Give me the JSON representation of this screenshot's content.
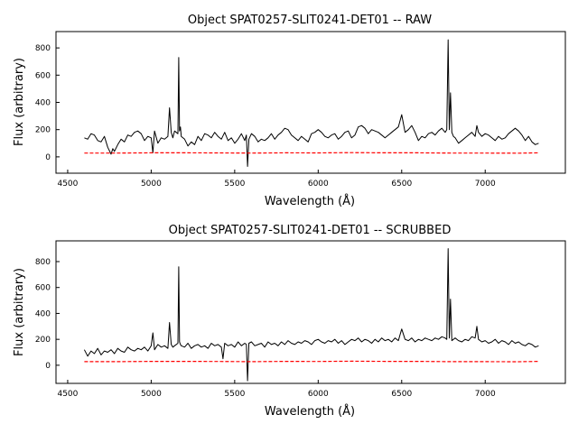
{
  "chart_data": [
    {
      "type": "line",
      "title": "Object SPAT0257-SLIT0241-DET01 -- RAW",
      "xlabel": "Wavelength (Å)",
      "ylabel": "Flux (arbitrary)",
      "xlim": [
        4430,
        7480
      ],
      "ylim": [
        -120,
        920
      ],
      "xticks": [
        4500,
        5000,
        5500,
        6000,
        6500,
        7000
      ],
      "yticks": [
        0,
        200,
        400,
        600,
        800
      ],
      "grid": false,
      "series": [
        {
          "style": "solid",
          "color": "#000000",
          "x": [
            4600,
            4620,
            4640,
            4660,
            4680,
            4700,
            4720,
            4740,
            4760,
            4770,
            4780,
            4800,
            4820,
            4840,
            4860,
            4880,
            4900,
            4920,
            4940,
            4960,
            4980,
            5000,
            5010,
            5020,
            5040,
            5060,
            5080,
            5100,
            5110,
            5120,
            5130,
            5140,
            5160,
            5165,
            5170,
            5175,
            5180,
            5200,
            5220,
            5240,
            5260,
            5280,
            5300,
            5320,
            5340,
            5360,
            5380,
            5400,
            5420,
            5440,
            5460,
            5480,
            5500,
            5520,
            5540,
            5560,
            5570,
            5577,
            5585,
            5600,
            5620,
            5640,
            5660,
            5680,
            5700,
            5720,
            5740,
            5760,
            5780,
            5800,
            5820,
            5840,
            5860,
            5880,
            5900,
            5920,
            5940,
            5960,
            5980,
            6000,
            6020,
            6040,
            6060,
            6080,
            6100,
            6120,
            6140,
            6160,
            6180,
            6200,
            6220,
            6240,
            6260,
            6280,
            6300,
            6320,
            6340,
            6360,
            6380,
            6400,
            6420,
            6440,
            6460,
            6480,
            6500,
            6520,
            6540,
            6560,
            6580,
            6600,
            6620,
            6640,
            6660,
            6680,
            6700,
            6720,
            6740,
            6760,
            6770,
            6778,
            6785,
            6792,
            6800,
            6810,
            6820,
            6840,
            6860,
            6880,
            6900,
            6920,
            6940,
            6950,
            6960,
            6980,
            7000,
            7020,
            7040,
            7060,
            7080,
            7100,
            7120,
            7140,
            7160,
            7180,
            7200,
            7220,
            7240,
            7260,
            7280,
            7300,
            7320
          ],
          "y": [
            140,
            130,
            170,
            160,
            120,
            110,
            150,
            70,
            20,
            60,
            40,
            90,
            130,
            110,
            160,
            150,
            180,
            190,
            170,
            120,
            150,
            140,
            30,
            190,
            100,
            140,
            130,
            150,
            360,
            180,
            140,
            190,
            170,
            730,
            190,
            220,
            150,
            130,
            80,
            110,
            90,
            150,
            120,
            170,
            160,
            140,
            180,
            150,
            130,
            180,
            120,
            140,
            100,
            130,
            170,
            120,
            160,
            -70,
            130,
            170,
            150,
            110,
            130,
            120,
            140,
            170,
            130,
            160,
            180,
            210,
            200,
            160,
            140,
            120,
            150,
            130,
            110,
            170,
            180,
            200,
            180,
            150,
            140,
            160,
            170,
            130,
            150,
            180,
            190,
            140,
            160,
            220,
            230,
            210,
            170,
            200,
            190,
            180,
            160,
            140,
            160,
            180,
            200,
            220,
            310,
            180,
            200,
            230,
            180,
            120,
            150,
            140,
            170,
            180,
            160,
            190,
            210,
            180,
            200,
            860,
            200,
            470,
            180,
            150,
            140,
            100,
            120,
            140,
            160,
            180,
            150,
            230,
            180,
            150,
            170,
            160,
            140,
            120,
            150,
            130,
            140,
            170,
            190,
            210,
            190,
            160,
            120,
            150,
            110,
            90,
            100
          ]
        },
        {
          "style": "dashed",
          "color": "#ff0000",
          "x": [
            4600,
            4800,
            5000,
            5200,
            5400,
            5600,
            5800,
            6000,
            6200,
            6400,
            6600,
            6800,
            7000,
            7200,
            7320
          ],
          "y": [
            28,
            28,
            30,
            30,
            29,
            28,
            30,
            29,
            31,
            30,
            30,
            28,
            28,
            27,
            30
          ]
        }
      ]
    },
    {
      "type": "line",
      "title": "Object SPAT0257-SLIT0241-DET01 -- SCRUBBED",
      "xlabel": "Wavelength (Å)",
      "ylabel": "Flux (arbitrary)",
      "xlim": [
        4430,
        7480
      ],
      "ylim": [
        -140,
        960
      ],
      "xticks": [
        4500,
        5000,
        5500,
        6000,
        6500,
        7000
      ],
      "yticks": [
        0,
        200,
        400,
        600,
        800
      ],
      "grid": false,
      "series": [
        {
          "style": "solid",
          "color": "#000000",
          "x": [
            4600,
            4620,
            4640,
            4660,
            4680,
            4700,
            4720,
            4740,
            4760,
            4780,
            4800,
            4820,
            4840,
            4860,
            4880,
            4900,
            4920,
            4940,
            4960,
            4980,
            5000,
            5010,
            5020,
            5040,
            5060,
            5080,
            5100,
            5110,
            5120,
            5130,
            5140,
            5160,
            5165,
            5170,
            5175,
            5180,
            5200,
            5220,
            5240,
            5260,
            5280,
            5300,
            5320,
            5340,
            5360,
            5380,
            5400,
            5420,
            5430,
            5440,
            5460,
            5480,
            5500,
            5520,
            5540,
            5560,
            5570,
            5577,
            5585,
            5600,
            5620,
            5640,
            5660,
            5680,
            5700,
            5720,
            5740,
            5760,
            5780,
            5800,
            5820,
            5840,
            5860,
            5880,
            5900,
            5920,
            5940,
            5960,
            5980,
            6000,
            6020,
            6040,
            6060,
            6080,
            6100,
            6120,
            6140,
            6160,
            6180,
            6200,
            6220,
            6240,
            6260,
            6280,
            6300,
            6320,
            6340,
            6360,
            6380,
            6400,
            6420,
            6440,
            6460,
            6480,
            6500,
            6520,
            6540,
            6560,
            6580,
            6600,
            6620,
            6640,
            6660,
            6680,
            6700,
            6720,
            6740,
            6760,
            6770,
            6778,
            6785,
            6792,
            6800,
            6810,
            6820,
            6840,
            6860,
            6880,
            6900,
            6920,
            6940,
            6950,
            6960,
            6980,
            7000,
            7020,
            7040,
            7060,
            7080,
            7100,
            7120,
            7140,
            7160,
            7180,
            7200,
            7220,
            7240,
            7260,
            7280,
            7300,
            7320
          ],
          "y": [
            120,
            70,
            110,
            90,
            130,
            80,
            110,
            100,
            120,
            90,
            130,
            110,
            100,
            140,
            120,
            110,
            130,
            120,
            140,
            110,
            150,
            250,
            120,
            160,
            140,
            150,
            130,
            330,
            160,
            140,
            150,
            170,
            760,
            180,
            160,
            150,
            140,
            170,
            130,
            150,
            160,
            140,
            150,
            130,
            170,
            150,
            160,
            140,
            50,
            170,
            150,
            160,
            140,
            180,
            150,
            170,
            160,
            -120,
            170,
            180,
            150,
            160,
            170,
            140,
            180,
            160,
            170,
            150,
            180,
            160,
            190,
            170,
            160,
            180,
            170,
            190,
            180,
            160,
            190,
            200,
            180,
            170,
            190,
            180,
            200,
            170,
            190,
            160,
            180,
            200,
            190,
            210,
            180,
            200,
            190,
            170,
            200,
            180,
            210,
            190,
            200,
            180,
            210,
            190,
            280,
            200,
            190,
            210,
            180,
            200,
            190,
            210,
            200,
            190,
            210,
            200,
            220,
            210,
            200,
            900,
            210,
            510,
            190,
            200,
            210,
            190,
            180,
            200,
            190,
            220,
            210,
            300,
            200,
            180,
            190,
            170,
            180,
            200,
            170,
            190,
            180,
            160,
            190,
            170,
            180,
            160,
            150,
            170,
            160,
            140,
            150
          ]
        },
        {
          "style": "dashed",
          "color": "#ff0000",
          "x": [
            4600,
            4800,
            5000,
            5200,
            5400,
            5600,
            5800,
            6000,
            6200,
            6400,
            6600,
            6800,
            7000,
            7200,
            7320
          ],
          "y": [
            28,
            28,
            30,
            30,
            29,
            28,
            30,
            29,
            31,
            30,
            30,
            28,
            28,
            27,
            30
          ]
        }
      ]
    }
  ]
}
